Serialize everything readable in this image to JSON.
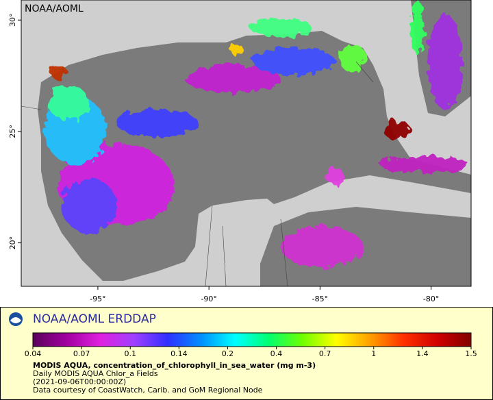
{
  "map": {
    "watermark": "NOAA/AOML",
    "xlim": [
      -98.45,
      -78.2
    ],
    "ylim": [
      18.05,
      30.9
    ],
    "xticks": [
      {
        "value": -95,
        "label": "-95°"
      },
      {
        "value": -90,
        "label": "-90°"
      },
      {
        "value": -85,
        "label": "-85°"
      },
      {
        "value": -80,
        "label": "-80°"
      }
    ],
    "yticks": [
      {
        "value": 20,
        "label": "20°"
      },
      {
        "value": 25,
        "label": "25°"
      },
      {
        "value": 30,
        "label": "30°"
      }
    ]
  },
  "legend": {
    "brand": "NOAA/AOML ERDDAP",
    "colorbar": {
      "ticks": [
        0.04,
        0.07,
        0.1,
        0.14,
        0.2,
        0.4,
        0.7,
        1,
        1.4,
        1.5
      ],
      "colors": [
        "#5a005a",
        "#a000a0",
        "#e020e0",
        "#a040ff",
        "#3030ff",
        "#0090ff",
        "#00ffff",
        "#00ff70",
        "#70ff00",
        "#ffff00",
        "#ffa000",
        "#ff3000",
        "#d00000",
        "#800000"
      ]
    },
    "title": "MODIS AQUA, concentration_of_chlorophyll_in_sea_water (mg m-3)",
    "lines": [
      "Daily MODIS AQUA Chlor_a Fields",
      "(2021-09-06T00:00:00Z)",
      "Data courtesy of CoastWatch, Carib. and GoM Regional Node"
    ]
  }
}
